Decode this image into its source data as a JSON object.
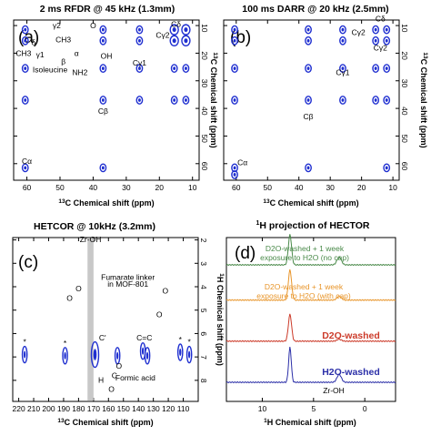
{
  "chart_data": [
    {
      "panel": "(a)",
      "type": "heatmap",
      "title": "2 ms RFDR @ 45 kHz (1.3mm)",
      "xlabel": "13C Chemical shift (ppm)",
      "ylabel": "13C Chemical shift (ppm)",
      "xlim": [
        64,
        8
      ],
      "ylim": [
        8,
        66
      ],
      "x_ticks": [
        60,
        50,
        40,
        30,
        20,
        10
      ],
      "y_ticks": [
        10,
        20,
        30,
        40,
        50,
        60
      ],
      "annotations": [
        {
          "text": "Cδ",
          "x": 15,
          "y": 10.5
        },
        {
          "text": "Cγ2",
          "x": 19,
          "y": 14.5
        },
        {
          "text": "Cγ1",
          "x": 26,
          "y": 24.5
        },
        {
          "text": "Cβ",
          "x": 37,
          "y": 42
        },
        {
          "text": "Cα",
          "x": 60,
          "y": 60
        },
        {
          "text": "Isoleucine",
          "x": 53,
          "y": 27
        },
        {
          "text": "δ",
          "x": 58,
          "y": 17
        },
        {
          "text": "γ2",
          "x": 51,
          "y": 11
        },
        {
          "text": "CH3",
          "x": 61,
          "y": 21
        },
        {
          "text": "CH3",
          "x": 49,
          "y": 16
        },
        {
          "text": "γ1",
          "x": 56,
          "y": 21.5
        },
        {
          "text": "β",
          "x": 49,
          "y": 24
        },
        {
          "text": "α",
          "x": 45,
          "y": 21
        },
        {
          "text": "O",
          "x": 40,
          "y": 11
        },
        {
          "text": "OH",
          "x": 36,
          "y": 22
        },
        {
          "text": "NH2",
          "x": 44,
          "y": 28
        }
      ],
      "peaks": [
        {
          "x": 60.5,
          "y": 11.5
        },
        {
          "x": 60.5,
          "y": 15.5
        },
        {
          "x": 60.5,
          "y": 25.5
        },
        {
          "x": 60.5,
          "y": 37
        },
        {
          "x": 60.5,
          "y": 61.5
        },
        {
          "x": 37,
          "y": 11.5
        },
        {
          "x": 37,
          "y": 15.5
        },
        {
          "x": 37,
          "y": 25.5
        },
        {
          "x": 37,
          "y": 37
        },
        {
          "x": 37,
          "y": 61.5
        },
        {
          "x": 26,
          "y": 11.5
        },
        {
          "x": 26,
          "y": 15.5
        },
        {
          "x": 26,
          "y": 25.5
        },
        {
          "x": 26,
          "y": 37
        },
        {
          "x": 15.5,
          "y": 11.5
        },
        {
          "x": 15.5,
          "y": 15.5
        },
        {
          "x": 15.5,
          "y": 25.5
        },
        {
          "x": 15.5,
          "y": 37
        },
        {
          "x": 12,
          "y": 11.5
        },
        {
          "x": 12,
          "y": 15.5
        },
        {
          "x": 12,
          "y": 25.5
        },
        {
          "x": 12,
          "y": 37
        }
      ]
    },
    {
      "panel": "(b)",
      "type": "heatmap",
      "title": "100 ms DARR @ 20 kHz (2.5mm)",
      "xlabel": "13C Chemical shift (ppm)",
      "ylabel": "13C Chemical shift (ppm)",
      "xlim": [
        64,
        8
      ],
      "ylim": [
        8,
        66
      ],
      "x_ticks": [
        60,
        50,
        40,
        30,
        20,
        10
      ],
      "y_ticks": [
        10,
        20,
        30,
        40,
        50,
        60
      ],
      "annotations": [
        {
          "text": "Cδ",
          "x": 14,
          "y": 8.5
        },
        {
          "text": "Cγ2",
          "x": 21,
          "y": 13.5
        },
        {
          "text": "Cγ2",
          "x": 14,
          "y": 19
        },
        {
          "text": "Cγ1",
          "x": 26,
          "y": 28
        },
        {
          "text": "Cβ",
          "x": 37,
          "y": 44
        },
        {
          "text": "Cα",
          "x": 58,
          "y": 60.5
        }
      ],
      "peaks": [
        {
          "x": 60.5,
          "y": 11.5
        },
        {
          "x": 60.5,
          "y": 15.5
        },
        {
          "x": 60.5,
          "y": 25.5
        },
        {
          "x": 60.5,
          "y": 37
        },
        {
          "x": 60.5,
          "y": 61.5
        },
        {
          "x": 37,
          "y": 11.5
        },
        {
          "x": 37,
          "y": 15.5
        },
        {
          "x": 37,
          "y": 25.5
        },
        {
          "x": 37,
          "y": 37
        },
        {
          "x": 37,
          "y": 61.5
        },
        {
          "x": 26,
          "y": 11.5
        },
        {
          "x": 26,
          "y": 15.5
        },
        {
          "x": 26,
          "y": 25.5
        },
        {
          "x": 26,
          "y": 37
        },
        {
          "x": 15.5,
          "y": 11.5
        },
        {
          "x": 15.5,
          "y": 15.5
        },
        {
          "x": 15.5,
          "y": 25.5
        },
        {
          "x": 15.5,
          "y": 37
        },
        {
          "x": 12,
          "y": 11.5
        },
        {
          "x": 12,
          "y": 15.5
        },
        {
          "x": 12,
          "y": 25.5
        },
        {
          "x": 12,
          "y": 37
        },
        {
          "x": 60.5,
          "y": 64
        },
        {
          "x": 12,
          "y": 61.5
        }
      ]
    },
    {
      "panel": "(c)",
      "type": "heatmap",
      "title": "HETCOR @ 10kHz (3.2mm)",
      "xlabel": "13C Chemical shift (ppm)",
      "ylabel": "1H Chemical shift (ppm)",
      "xlim": [
        224,
        100
      ],
      "ylim": [
        1.9,
        8.9
      ],
      "x_ticks": [
        220,
        210,
        200,
        190,
        180,
        170,
        160,
        150,
        140,
        130,
        120,
        110
      ],
      "y_ticks": [
        2,
        3,
        4,
        5,
        6,
        7,
        8
      ],
      "highlight_band": [
        170,
        174
      ],
      "annotations": [
        {
          "text": "Zr-OH",
          "x": 172,
          "y": 2.1
        },
        {
          "text": "Fumarate linker",
          "x": 147,
          "y": 3.7
        },
        {
          "text": "in MOF-801",
          "x": 147,
          "y": 4.0
        },
        {
          "text": "C'",
          "x": 164,
          "y": 6.3
        },
        {
          "text": "C=C",
          "x": 136,
          "y": 6.3
        },
        {
          "text": "Formic acid",
          "x": 142,
          "y": 8.0
        },
        {
          "text": "O",
          "x": 186,
          "y": 4.6
        },
        {
          "text": "O",
          "x": 180,
          "y": 4.2
        },
        {
          "text": "O",
          "x": 122,
          "y": 4.3
        },
        {
          "text": "O",
          "x": 126,
          "y": 5.3
        },
        {
          "text": "H",
          "x": 165,
          "y": 8.1
        },
        {
          "text": "C",
          "x": 156,
          "y": 7.9
        },
        {
          "text": "O",
          "x": 153,
          "y": 7.5
        },
        {
          "text": "O",
          "x": 158,
          "y": 8.5
        }
      ],
      "peaks": [
        {
          "x": 216,
          "y": 6.9,
          "label": "*"
        },
        {
          "x": 189,
          "y": 6.95,
          "label": "*"
        },
        {
          "x": 169,
          "y": 6.9
        },
        {
          "x": 154,
          "y": 6.95
        },
        {
          "x": 137,
          "y": 6.75
        },
        {
          "x": 134,
          "y": 6.95
        },
        {
          "x": 112,
          "y": 6.8,
          "label": "*"
        },
        {
          "x": 106,
          "y": 6.9,
          "label": "*"
        }
      ]
    },
    {
      "panel": "(d)",
      "type": "line",
      "title": "1H projection of HECTOR",
      "xlabel": "1H Chemical shift (ppm)",
      "xlim": [
        13.5,
        -3
      ],
      "x_ticks": [
        10,
        5,
        0
      ],
      "annotations": [
        {
          "text": "Zr-OH",
          "x": 2.5,
          "y": 0.12
        }
      ],
      "series": [
        {
          "name": "D2O-washed + 1 week exposure to H2O (no cap)",
          "color": "#4a8a4a",
          "offset": 3.0,
          "peaks": [
            {
              "x": 7.3,
              "h": 0.62,
              "w": 0.22
            },
            {
              "x": 2.5,
              "h": 0.16,
              "w": 0.3
            }
          ]
        },
        {
          "name": "D2O-washed + 1 week exposure to H2O (with cap)",
          "color": "#e8952a",
          "offset": 2.1,
          "peaks": [
            {
              "x": 7.3,
              "h": 0.62,
              "w": 0.22
            },
            {
              "x": 2.5,
              "h": 0.08,
              "w": 0.3
            }
          ]
        },
        {
          "name": "D2O-washed",
          "color": "#cc3b2a",
          "offset": 1.05,
          "peaks": [
            {
              "x": 7.3,
              "h": 0.55,
              "w": 0.22
            },
            {
              "x": 2.5,
              "h": 0.04,
              "w": 0.3
            }
          ]
        },
        {
          "name": "H2O-washed",
          "color": "#2b2fa8",
          "offset": 0.0,
          "peaks": [
            {
              "x": 7.3,
              "h": 0.72,
              "w": 0.18
            },
            {
              "x": 2.5,
              "h": 0.16,
              "w": 0.3
            }
          ]
        }
      ]
    }
  ],
  "labels": {
    "a_title": "2 ms RFDR @ 45 kHz (1.3mm)",
    "b_title": "100 ms DARR @ 20 kHz (2.5mm)",
    "c_title": "HETCOR @ 10kHz (3.2mm)",
    "d_title_pre": "1",
    "d_title_main": "H projection of HECTOR",
    "panel_a": "(a)",
    "panel_b": "(b)",
    "panel_c": "(c)",
    "panel_d": "(d)",
    "x13_sup": "13",
    "x13_main": "C Chemical shift (ppm)",
    "x1h_sup": "1",
    "x1h_main": "H Chemical shift (ppm)",
    "y13_sup": "13",
    "y13_main": "C Chemical shift (ppm)",
    "y1h_sup": "1",
    "y1h_main": "H Chemical shift (ppm)",
    "legend_green_1": "D2O-washed + 1 week",
    "legend_green_2": "exposure to H2O (no cap)",
    "legend_orange_1": "D2O-washed + 1 week",
    "legend_orange_2": "exposure to H2O (with cap)",
    "legend_red": "D2O-washed",
    "legend_blue": "H2O-washed",
    "zr_oh": "Zr-OH"
  }
}
